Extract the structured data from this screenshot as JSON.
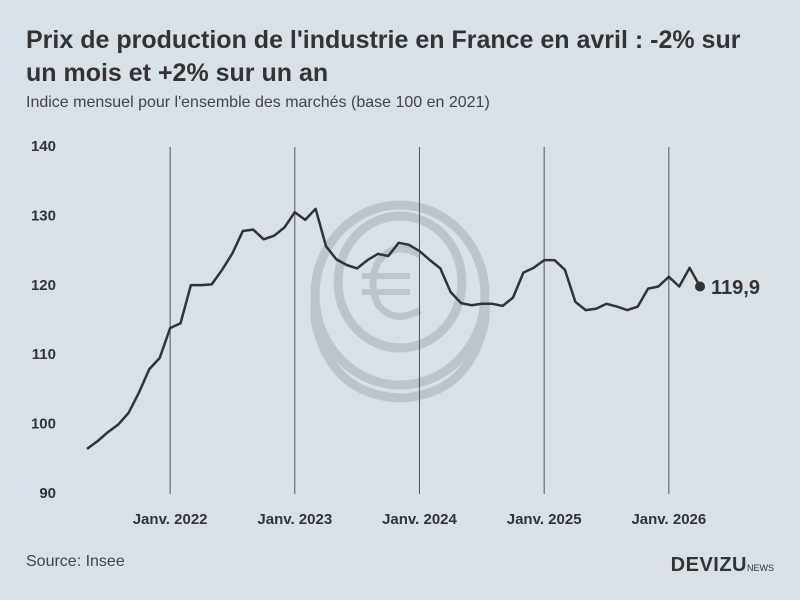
{
  "chart_data": {
    "type": "line",
    "title": "Prix de production de l'industrie en France en avril : -2% sur un mois et +2% sur un an",
    "subtitle": "Indice mensuel pour l'ensemble des marchés (base 100 en 2021)",
    "source": "Source: Insee",
    "brand": "DEVIZU",
    "brand_suffix": "NEWS",
    "x": [
      "2021-05",
      "2021-06",
      "2021-07",
      "2021-08",
      "2021-09",
      "2021-10",
      "2021-11",
      "2021-12",
      "2022-01",
      "2022-02",
      "2022-03",
      "2022-04",
      "2022-05",
      "2022-06",
      "2022-07",
      "2022-08",
      "2022-09",
      "2022-10",
      "2022-11",
      "2022-12",
      "2023-01",
      "2023-02",
      "2023-03",
      "2023-04",
      "2023-05",
      "2023-06",
      "2023-07",
      "2023-08",
      "2023-09",
      "2023-10",
      "2023-11",
      "2023-12",
      "2024-01",
      "2024-02",
      "2024-03",
      "2024-04",
      "2024-05",
      "2024-06",
      "2024-07",
      "2024-08",
      "2024-09",
      "2024-10",
      "2024-11",
      "2024-12",
      "2025-01",
      "2025-02",
      "2025-03",
      "2025-04",
      "2025-05",
      "2025-06",
      "2025-07",
      "2025-08",
      "2025-09",
      "2025-10",
      "2025-11",
      "2025-12",
      "2026-01",
      "2026-02",
      "2026-03",
      "2026-04"
    ],
    "series": [
      {
        "name": "Indice",
        "color": "#333333",
        "values": [
          96.5,
          97.6,
          98.9,
          100.0,
          101.7,
          104.6,
          108.0,
          109.6,
          113.9,
          114.6,
          120.1,
          120.1,
          120.2,
          122.3,
          124.7,
          127.9,
          128.1,
          126.7,
          127.2,
          128.4,
          130.6,
          129.5,
          131.1,
          125.7,
          123.8,
          123.0,
          122.5,
          123.7,
          124.6,
          124.3,
          126.2,
          125.9,
          125.0,
          123.7,
          122.5,
          119.1,
          117.5,
          117.2,
          117.4,
          117.4,
          117.1,
          118.3,
          121.9,
          122.6,
          123.7,
          123.7,
          122.3,
          117.7,
          116.5,
          116.7,
          117.4,
          117.0,
          116.5,
          117.0,
          119.6,
          119.9,
          121.3,
          119.9,
          122.6,
          119.9
        ],
        "value_labels": [
          null,
          null,
          null,
          null,
          null,
          null,
          null,
          null,
          null,
          null,
          null,
          null,
          null,
          null,
          null,
          null,
          null,
          null,
          null,
          null,
          null,
          null,
          null,
          null,
          null,
          null,
          null,
          null,
          null,
          null,
          null,
          null,
          null,
          null,
          null,
          null,
          null,
          null,
          null,
          null,
          null,
          null,
          null,
          null,
          null,
          null,
          null,
          null,
          null,
          null,
          null,
          null,
          null,
          null,
          null,
          null,
          null,
          null,
          null,
          "119,9"
        ]
      }
    ],
    "xlim": [
      "2021-05",
      "2026-04"
    ],
    "xticks": [
      {
        "value": "2022-01",
        "label": "Janv. 2022"
      },
      {
        "value": "2023-01",
        "label": "Janv. 2023"
      },
      {
        "value": "2024-01",
        "label": "Janv. 2024"
      },
      {
        "value": "2025-01",
        "label": "Janv. 2025"
      },
      {
        "value": "2026-01",
        "label": "Janv. 2026"
      }
    ],
    "ylim": [
      90,
      140
    ],
    "yticks": [
      90,
      100,
      110,
      120,
      130,
      140
    ],
    "grid": "x"
  }
}
